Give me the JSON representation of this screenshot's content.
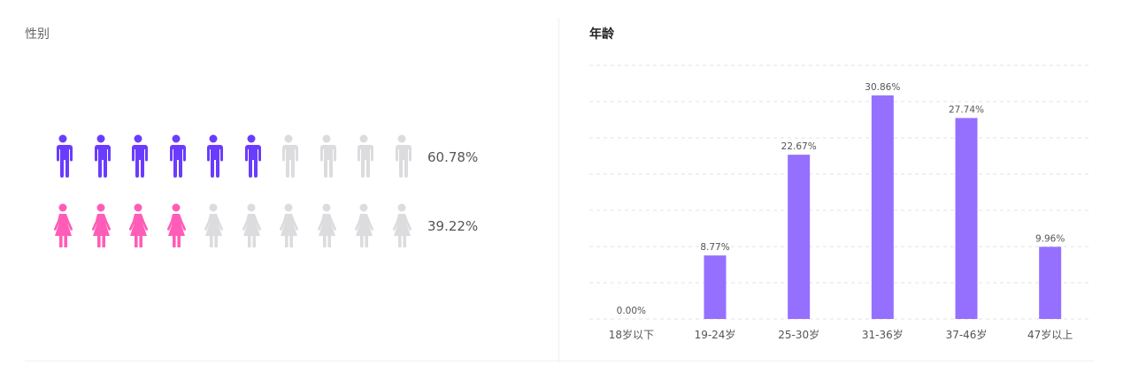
{
  "gender": {
    "title": "性别",
    "rows": [
      {
        "label": "60.78%",
        "value": 60.78,
        "icon": "male-icon",
        "filled": 6,
        "total": 10,
        "color": "#6a3cff"
      },
      {
        "label": "39.22%",
        "value": 39.22,
        "icon": "female-icon",
        "filled": 4,
        "total": 10,
        "color": "#ff5cb8"
      }
    ],
    "inactive_color": "#dcdcdf"
  },
  "age": {
    "title": "年龄"
  },
  "chart_data": {
    "type": "bar",
    "title": "年龄",
    "categories": [
      "18岁以下",
      "19-24岁",
      "25-30岁",
      "31-36岁",
      "37-46岁",
      "47岁以上"
    ],
    "values": [
      0.0,
      8.77,
      22.67,
      30.86,
      27.74,
      9.96
    ],
    "data_labels": [
      "0.00%",
      "8.77%",
      "22.67%",
      "30.86%",
      "27.74%",
      "9.96%"
    ],
    "ylim": [
      0,
      35
    ],
    "grid": true,
    "bar_color": "#9570ff"
  }
}
